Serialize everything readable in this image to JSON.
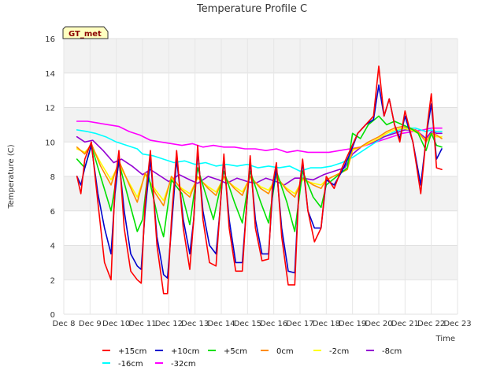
{
  "chart_data": {
    "type": "line",
    "title": "Temperature Profile C",
    "xlabel": "Time",
    "ylabel": "Temperature (C)",
    "badge": "GT_met",
    "grid": true,
    "legend_position": "bottom",
    "ylim": [
      0,
      16
    ],
    "xlim": [
      8,
      23
    ],
    "y_ticks": [
      0,
      2,
      4,
      6,
      8,
      10,
      12,
      14,
      16
    ],
    "x_ticks": [
      8,
      9,
      10,
      11,
      12,
      13,
      14,
      15,
      16,
      17,
      18,
      19,
      20,
      21,
      22,
      23
    ],
    "x_tick_labels": [
      "Dec 8",
      "Dec 9",
      "Dec 10",
      "Dec 11",
      "Dec 12",
      "Dec 13",
      "Dec 14",
      "Dec 15",
      "Dec 16",
      "Dec 17",
      "Dec 18",
      "Dec 19",
      "Dec 20",
      "Dec 21",
      "Dec 22",
      "Dec 23"
    ],
    "series": [
      {
        "name": "+15cm",
        "color": "#ff0000",
        "x": [
          8.5,
          8.65,
          8.8,
          9.05,
          9.3,
          9.55,
          9.8,
          9.95,
          10.1,
          10.3,
          10.55,
          10.8,
          10.95,
          11.1,
          11.3,
          11.55,
          11.8,
          11.95,
          12.1,
          12.3,
          12.55,
          12.8,
          12.95,
          13.1,
          13.3,
          13.55,
          13.8,
          13.95,
          14.1,
          14.3,
          14.55,
          14.8,
          14.95,
          15.1,
          15.3,
          15.55,
          15.8,
          15.95,
          16.1,
          16.3,
          16.55,
          16.8,
          16.95,
          17.1,
          17.3,
          17.55,
          17.8,
          18.0,
          18.3,
          18.6,
          18.9,
          19.2,
          19.5,
          19.8,
          20.0,
          20.2,
          20.4,
          20.6,
          20.8,
          21.0,
          21.3,
          21.6,
          21.85,
          22.0,
          22.2,
          22.4
        ],
        "values": [
          8.0,
          7.0,
          9.0,
          10.0,
          6.5,
          3.0,
          2.0,
          7.5,
          9.5,
          5.0,
          2.5,
          2.0,
          1.8,
          6.5,
          9.5,
          4.0,
          1.2,
          1.2,
          5.5,
          9.5,
          5.0,
          2.6,
          5.5,
          9.8,
          5.5,
          3.0,
          2.8,
          6.0,
          9.3,
          5.0,
          2.5,
          2.5,
          6.0,
          9.2,
          5.0,
          3.1,
          3.2,
          7.5,
          8.8,
          4.5,
          1.7,
          1.7,
          7.0,
          9.0,
          6.0,
          4.2,
          5.0,
          8.0,
          7.3,
          8.5,
          9.5,
          10.5,
          11.0,
          11.5,
          14.4,
          11.5,
          12.5,
          11.0,
          10.0,
          11.8,
          10.0,
          7.0,
          11.0,
          12.8,
          8.5,
          8.4
        ]
      },
      {
        "name": "+10cm",
        "color": "#0000cd",
        "x": [
          8.5,
          8.65,
          8.8,
          9.05,
          9.3,
          9.55,
          9.8,
          9.95,
          10.1,
          10.3,
          10.55,
          10.8,
          10.95,
          11.1,
          11.3,
          11.55,
          11.8,
          11.95,
          12.1,
          12.3,
          12.55,
          12.8,
          12.95,
          13.1,
          13.3,
          13.55,
          13.8,
          13.95,
          14.1,
          14.3,
          14.55,
          14.8,
          14.95,
          15.1,
          15.3,
          15.55,
          15.8,
          15.95,
          16.1,
          16.3,
          16.55,
          16.8,
          16.95,
          17.1,
          17.3,
          17.55,
          17.8,
          18.0,
          18.3,
          18.6,
          18.9,
          19.2,
          19.5,
          19.8,
          20.0,
          20.2,
          20.4,
          20.6,
          20.8,
          21.0,
          21.3,
          21.6,
          21.85,
          22.0,
          22.2,
          22.4
        ],
        "values": [
          8.0,
          7.5,
          8.5,
          9.8,
          7.0,
          5.0,
          3.5,
          7.0,
          9.0,
          6.0,
          3.5,
          2.8,
          2.6,
          6.0,
          9.0,
          4.5,
          2.3,
          2.1,
          5.0,
          9.0,
          5.5,
          3.5,
          5.5,
          9.5,
          6.0,
          4.0,
          3.5,
          6.0,
          9.0,
          5.5,
          3.0,
          3.0,
          6.0,
          8.9,
          5.5,
          3.5,
          3.5,
          7.0,
          8.5,
          5.0,
          2.5,
          2.4,
          7.0,
          8.8,
          6.0,
          5.0,
          5.0,
          7.8,
          7.5,
          8.3,
          9.3,
          10.5,
          11.0,
          11.3,
          13.3,
          11.5,
          12.5,
          11.0,
          10.2,
          11.5,
          10.0,
          7.5,
          10.8,
          12.2,
          9.0,
          9.6
        ]
      },
      {
        "name": "+5cm",
        "color": "#00e000",
        "x": [
          8.5,
          8.8,
          9.05,
          9.4,
          9.8,
          10.1,
          10.5,
          10.8,
          11.0,
          11.2,
          11.6,
          11.8,
          12.1,
          12.5,
          12.8,
          13.1,
          13.5,
          13.7,
          14.1,
          14.5,
          14.8,
          15.1,
          15.5,
          15.8,
          16.1,
          16.5,
          16.8,
          17.1,
          17.5,
          17.8,
          18.0,
          18.4,
          18.8,
          19.0,
          19.3,
          19.6,
          20.0,
          20.3,
          20.6,
          20.9,
          21.2,
          21.5,
          21.8,
          22.0,
          22.2,
          22.4
        ],
        "values": [
          9.0,
          8.5,
          9.8,
          8.0,
          6.0,
          8.8,
          6.5,
          4.8,
          5.5,
          8.2,
          5.5,
          4.5,
          7.8,
          7.0,
          5.2,
          8.5,
          6.5,
          5.5,
          8.3,
          6.5,
          5.3,
          8.3,
          6.5,
          5.3,
          8.3,
          6.5,
          4.8,
          8.3,
          6.8,
          6.2,
          7.5,
          8.0,
          8.5,
          10.5,
          10.2,
          11.0,
          11.5,
          11.0,
          11.2,
          11.0,
          10.8,
          10.5,
          9.5,
          10.5,
          9.8,
          9.7
        ]
      },
      {
        "name": "0cm",
        "color": "#ff8c00",
        "x": [
          8.5,
          8.8,
          9.05,
          9.4,
          9.8,
          10.1,
          10.5,
          10.8,
          11.1,
          11.5,
          11.8,
          12.1,
          12.5,
          12.8,
          13.1,
          13.5,
          13.8,
          14.1,
          14.5,
          14.8,
          15.1,
          15.5,
          15.8,
          16.1,
          16.5,
          16.8,
          17.1,
          17.5,
          17.8,
          18.0,
          18.4,
          18.8,
          19.0,
          19.3,
          19.6,
          20.0,
          20.3,
          20.6,
          20.9,
          21.2,
          21.5,
          21.8,
          22.0,
          22.2,
          22.4
        ],
        "values": [
          9.7,
          9.3,
          9.9,
          8.6,
          7.5,
          8.9,
          7.5,
          6.5,
          8.2,
          7.0,
          6.3,
          8.0,
          7.2,
          6.8,
          8.0,
          7.3,
          6.9,
          8.0,
          7.3,
          6.9,
          8.0,
          7.3,
          7.0,
          8.0,
          7.2,
          6.8,
          7.9,
          7.5,
          7.3,
          7.8,
          8.1,
          8.4,
          9.6,
          9.7,
          10.0,
          10.3,
          10.6,
          10.8,
          10.9,
          10.8,
          10.6,
          10.0,
          10.5,
          10.4,
          10.2
        ]
      },
      {
        "name": "-2cm",
        "color": "#ffff00",
        "x": [
          8.5,
          8.8,
          9.05,
          9.4,
          9.8,
          10.1,
          10.5,
          10.8,
          11.1,
          11.5,
          11.8,
          12.1,
          12.5,
          12.8,
          13.1,
          13.5,
          13.8,
          14.1,
          14.5,
          14.8,
          15.1,
          15.5,
          15.8,
          16.1,
          16.5,
          16.8,
          17.1,
          17.5,
          17.8,
          18.0,
          18.4,
          18.8,
          19.0,
          19.3,
          19.6,
          20.0,
          20.3,
          20.6,
          20.9,
          21.2,
          21.5,
          21.8,
          22.0,
          22.2,
          22.4
        ],
        "values": [
          9.6,
          9.4,
          9.8,
          8.8,
          7.8,
          8.7,
          7.6,
          6.8,
          8.1,
          7.2,
          6.6,
          7.9,
          7.3,
          7.0,
          7.9,
          7.4,
          7.1,
          7.9,
          7.4,
          7.1,
          7.9,
          7.4,
          7.2,
          7.9,
          7.3,
          7.0,
          7.8,
          7.6,
          7.5,
          7.8,
          8.1,
          8.4,
          9.5,
          9.7,
          9.9,
          10.2,
          10.5,
          10.7,
          10.8,
          10.7,
          10.5,
          10.1,
          10.4,
          10.3,
          10.3
        ]
      },
      {
        "name": "-8cm",
        "color": "#9400d3",
        "x": [
          8.5,
          8.8,
          9.1,
          9.5,
          9.9,
          10.2,
          10.6,
          11.0,
          11.3,
          11.7,
          12.0,
          12.4,
          12.8,
          13.1,
          13.5,
          13.9,
          14.2,
          14.6,
          15.0,
          15.3,
          15.7,
          16.1,
          16.4,
          16.8,
          17.1,
          17.5,
          17.9,
          18.3,
          18.7,
          19.0,
          19.4,
          19.8,
          20.2,
          20.6,
          21.0,
          21.4,
          21.8,
          22.0,
          22.2,
          22.4
        ],
        "values": [
          10.3,
          10.0,
          10.1,
          9.5,
          8.8,
          9.0,
          8.6,
          8.1,
          8.4,
          8.0,
          7.7,
          8.1,
          7.8,
          7.6,
          8.0,
          7.8,
          7.6,
          7.9,
          7.7,
          7.6,
          7.9,
          7.7,
          7.5,
          7.9,
          7.9,
          7.8,
          8.1,
          8.3,
          8.5,
          9.3,
          9.8,
          10.0,
          10.3,
          10.5,
          10.7,
          10.7,
          10.2,
          10.6,
          10.5,
          10.5
        ]
      },
      {
        "name": "-16cm",
        "color": "#00ffff",
        "x": [
          8.5,
          8.9,
          9.2,
          9.6,
          10.0,
          10.4,
          10.8,
          11.0,
          11.4,
          11.8,
          12.2,
          12.6,
          13.0,
          13.4,
          13.8,
          14.2,
          14.6,
          15.0,
          15.4,
          15.8,
          16.2,
          16.6,
          17.0,
          17.4,
          17.8,
          18.2,
          18.6,
          19.0,
          19.4,
          19.8,
          20.2,
          20.6,
          21.0,
          21.4,
          21.8,
          22.0,
          22.2,
          22.4
        ],
        "values": [
          10.7,
          10.6,
          10.5,
          10.3,
          10.0,
          9.8,
          9.6,
          9.3,
          9.2,
          9.0,
          8.8,
          8.9,
          8.7,
          8.8,
          8.6,
          8.7,
          8.6,
          8.7,
          8.5,
          8.6,
          8.5,
          8.6,
          8.3,
          8.5,
          8.5,
          8.6,
          8.8,
          9.1,
          9.5,
          9.9,
          10.3,
          10.6,
          10.8,
          10.8,
          10.6,
          10.7,
          10.6,
          10.6
        ]
      },
      {
        "name": "-32cm",
        "color": "#ff00ff",
        "x": [
          8.5,
          8.9,
          9.3,
          9.7,
          10.1,
          10.5,
          10.9,
          11.3,
          11.7,
          12.1,
          12.5,
          12.9,
          13.3,
          13.7,
          14.1,
          14.5,
          14.9,
          15.3,
          15.7,
          16.1,
          16.5,
          16.9,
          17.3,
          17.7,
          18.1,
          18.5,
          18.9,
          19.3,
          19.7,
          20.1,
          20.5,
          20.9,
          21.3,
          21.7,
          22.0,
          22.2,
          22.4
        ],
        "values": [
          11.2,
          11.2,
          11.1,
          11.0,
          10.9,
          10.6,
          10.4,
          10.1,
          10.0,
          9.9,
          9.8,
          9.9,
          9.7,
          9.8,
          9.7,
          9.7,
          9.6,
          9.6,
          9.5,
          9.6,
          9.4,
          9.5,
          9.4,
          9.4,
          9.4,
          9.5,
          9.6,
          9.7,
          9.9,
          10.1,
          10.3,
          10.5,
          10.6,
          10.7,
          10.8,
          10.8,
          10.8
        ]
      }
    ]
  }
}
